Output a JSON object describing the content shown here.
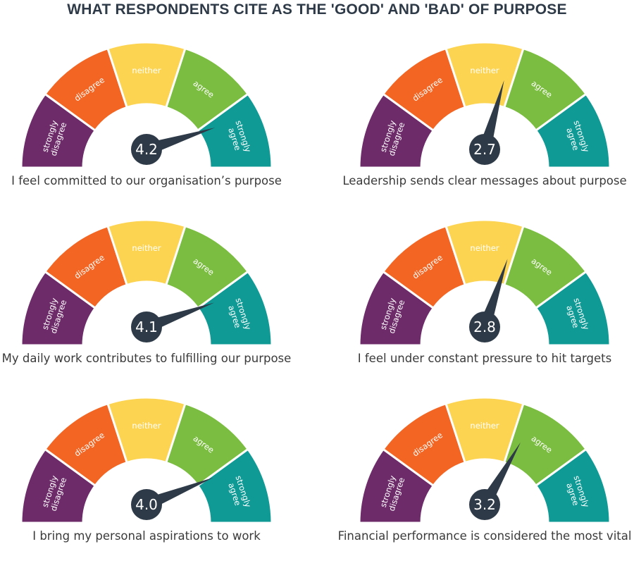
{
  "title": "WHAT RESPONDENTS CITE AS THE 'GOOD' AND 'BAD' OF PURPOSE",
  "chart_data": {
    "type": "gauge",
    "title": "WHAT RESPONDENTS CITE AS THE 'GOOD' AND 'BAD' OF PURPOSE",
    "scale": {
      "min": 1,
      "max": 5
    },
    "segments": [
      {
        "label": [
          "strongly",
          "disagree"
        ],
        "color": "#6d2b69"
      },
      {
        "label": [
          "disagree"
        ],
        "color": "#f26523"
      },
      {
        "label": [
          "neither"
        ],
        "color": "#fdd451"
      },
      {
        "label": [
          "agree"
        ],
        "color": "#7bbd40"
      },
      {
        "label": [
          "strongly",
          "agree"
        ],
        "color": "#0f9a95"
      }
    ],
    "needle_color": "#2e3a47",
    "gauges": [
      {
        "caption": "I feel committed to our organisation’s purpose",
        "value": 4.2,
        "value_label": "4.2"
      },
      {
        "caption": "Leadership sends clear messages about purpose",
        "value": 2.7,
        "value_label": "2.7"
      },
      {
        "caption": "My daily work contributes to fulfilling our purpose",
        "value": 4.1,
        "value_label": "4.1"
      },
      {
        "caption": "I feel under constant pressure to hit targets",
        "value": 2.8,
        "value_label": "2.8"
      },
      {
        "caption": "I bring my personal aspirations to work",
        "value": 4.0,
        "value_label": "4.0"
      },
      {
        "caption": "Financial performance is considered the most vital",
        "value": 3.2,
        "value_label": "3.2"
      }
    ]
  }
}
